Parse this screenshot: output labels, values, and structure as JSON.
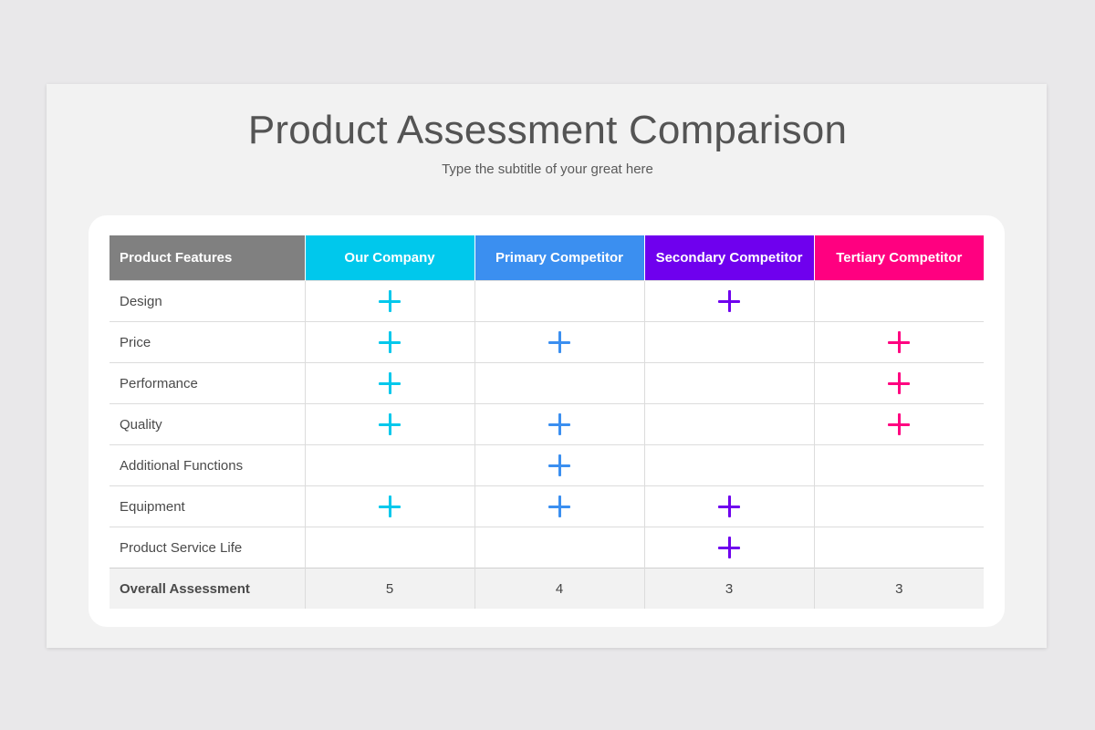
{
  "header": {
    "title": "Product Assessment Comparison",
    "subtitle": "Type the subtitle of your great here"
  },
  "table": {
    "columns": [
      {
        "label": "Product Features",
        "color": "#808080"
      },
      {
        "label": "Our Company",
        "color": "#00c8ec"
      },
      {
        "label": "Primary Competitor",
        "color": "#3b8ff0"
      },
      {
        "label": "Secondary Competitor",
        "color": "#6f00ee"
      },
      {
        "label": "Tertiary Competitor",
        "color": "#ff0080"
      }
    ],
    "icon": "plus-icon",
    "rows": [
      {
        "feature": "Design",
        "marks": [
          true,
          false,
          true,
          false
        ]
      },
      {
        "feature": "Price",
        "marks": [
          true,
          true,
          false,
          true
        ]
      },
      {
        "feature": "Performance",
        "marks": [
          true,
          false,
          false,
          true
        ]
      },
      {
        "feature": "Quality",
        "marks": [
          true,
          true,
          false,
          true
        ]
      },
      {
        "feature": "Additional Functions",
        "marks": [
          false,
          true,
          false,
          false
        ]
      },
      {
        "feature": "Equipment",
        "marks": [
          true,
          true,
          true,
          false
        ]
      },
      {
        "feature": "Product Service Life",
        "marks": [
          false,
          false,
          true,
          false
        ]
      }
    ],
    "total": {
      "label": "Overall Assessment",
      "values": [
        "5",
        "4",
        "3",
        "3"
      ]
    }
  }
}
